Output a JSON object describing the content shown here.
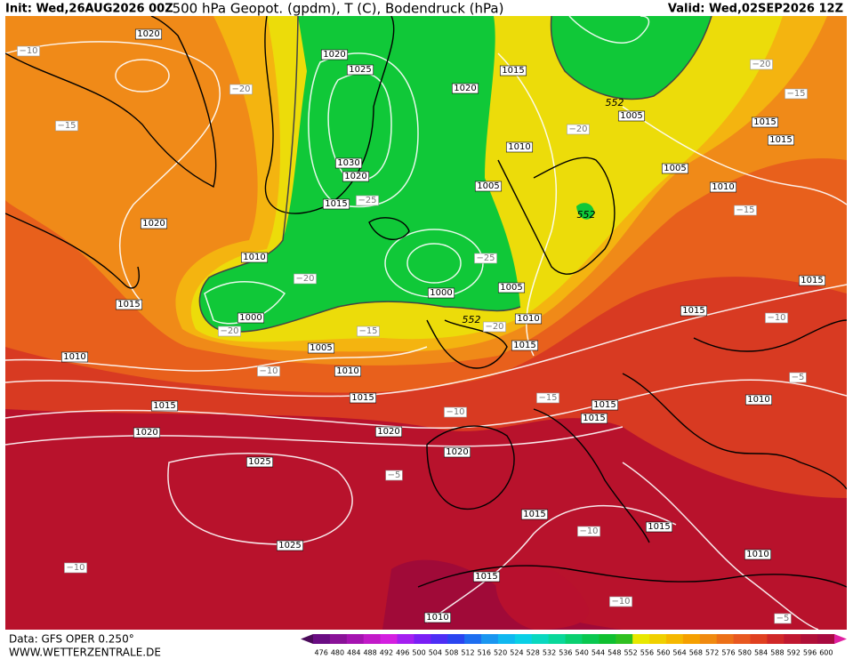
{
  "header": {
    "init": "Init: Wed,26AUG2026 00Z",
    "title": "500 hPa Geopot. (gpdm), T (C), Bodendruck (hPa)",
    "valid": "Valid: Wed,02SEP2026 12Z"
  },
  "map": {
    "pressure_labels": [
      "1020",
      "1020",
      "1025",
      "1015",
      "1020",
      "1005",
      "1015",
      "1015",
      "1010",
      "1005",
      "1030",
      "1020",
      "1015",
      "1005",
      "1010",
      "1020",
      "1010",
      "1015",
      "1000",
      "1005",
      "1010",
      "1000",
      "1005",
      "1015",
      "1015",
      "1010",
      "1010",
      "1015",
      "1015",
      "1015",
      "1015",
      "1010",
      "1015",
      "1020",
      "1020",
      "1020",
      "1025",
      "1015",
      "1015",
      "1025",
      "1010",
      "1015",
      "1010"
    ],
    "temperature_labels": [
      "−10",
      "−20",
      "−15",
      "−20",
      "−15",
      "−20",
      "−25",
      "−20",
      "−25",
      "−15",
      "−20",
      "−15",
      "−20",
      "−10",
      "−10",
      "−5",
      "−15",
      "−10",
      "−5",
      "−10",
      "−10",
      "−10",
      "−5"
    ],
    "height_labels": [
      "552",
      "552",
      "552"
    ]
  },
  "footer": {
    "data_source": "Data: GFS OPER 0.250°",
    "website": "WWW.WETTERZENTRALE.DE"
  },
  "colorbar": {
    "labels": [
      "476",
      "480",
      "484",
      "488",
      "492",
      "496",
      "500",
      "504",
      "508",
      "512",
      "516",
      "520",
      "524",
      "528",
      "532",
      "536",
      "540",
      "544",
      "548",
      "552",
      "556",
      "560",
      "564",
      "568",
      "572",
      "576",
      "580",
      "584",
      "588",
      "592",
      "596",
      "600"
    ],
    "colors": [
      "#4b0a5a",
      "#6a0d83",
      "#8a1298",
      "#a514b0",
      "#c21ac8",
      "#d41fe0",
      "#a41ff0",
      "#7a1ff5",
      "#4d2ef5",
      "#2a45f0",
      "#1e6ef0",
      "#1a96f0",
      "#10b8f0",
      "#0ad0e6",
      "#0ad8c0",
      "#0ad89a",
      "#0ad070",
      "#0ac850",
      "#10c030",
      "#30c020",
      "#e8e800",
      "#f0d000",
      "#f5b800",
      "#f5a000",
      "#f08a10",
      "#ec7018",
      "#e85820",
      "#e04020",
      "#d02828",
      "#c01830",
      "#b01038",
      "#a80a40",
      "#e020a0"
    ]
  }
}
